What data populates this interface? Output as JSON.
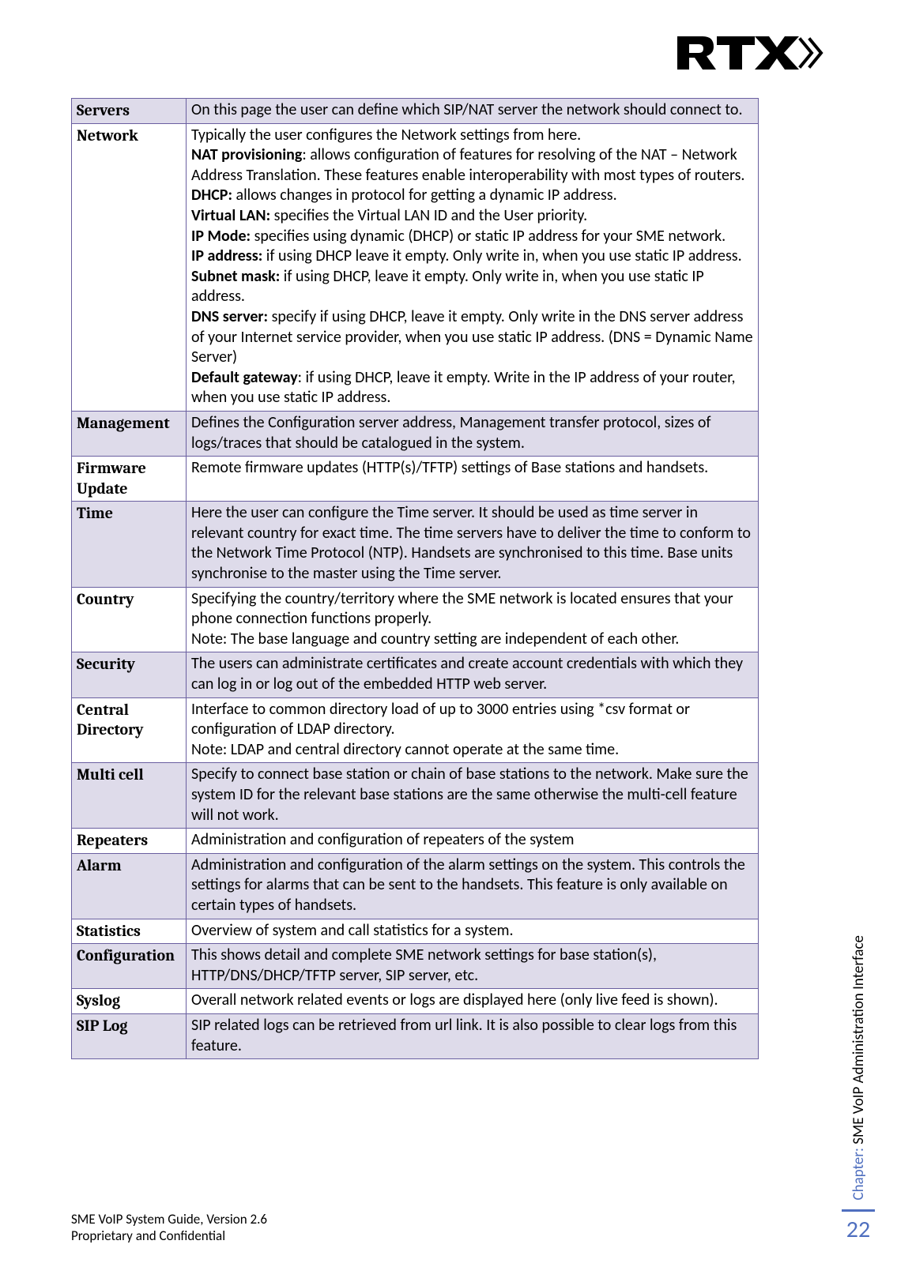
{
  "logo_text": "RTX",
  "rows": [
    {
      "shaded": true,
      "label": "Servers",
      "lines": [
        [
          [
            "",
            "On this page the user can define which SIP/NAT server the network should connect to."
          ]
        ]
      ]
    },
    {
      "shaded": false,
      "label": "Network",
      "lines": [
        [
          [
            "",
            "Typically the user configures the Network settings from here."
          ]
        ],
        [
          [
            "b",
            "NAT provisioning"
          ],
          [
            "",
            ": allows configuration of features for resolving of the NAT – Network Address Translation. These features enable interoperability with most types of routers."
          ]
        ],
        [
          [
            "b",
            "DHCP:"
          ],
          [
            "",
            " allows changes in protocol for getting a dynamic IP address."
          ]
        ],
        [
          [
            "b",
            "Virtual LAN:"
          ],
          [
            "",
            " specifies the Virtual LAN ID and the User priority."
          ]
        ],
        [
          [
            "b",
            "IP Mode:"
          ],
          [
            "",
            " specifies using dynamic (DHCP) or static IP address for your SME network."
          ]
        ],
        [
          [
            "b",
            "IP address:"
          ],
          [
            "",
            " if using DHCP leave it empty. Only write in, when you use static IP address."
          ]
        ],
        [
          [
            "b",
            "Subnet mask:"
          ],
          [
            "",
            " if using DHCP, leave it empty. Only write in, when you use static IP address."
          ]
        ],
        [
          [
            "b",
            "DNS server:"
          ],
          [
            "",
            " specify if using DHCP, leave it empty. Only write in the DNS server address of your Internet service provider, when you use static IP address. (DNS = Dynamic Name Server)"
          ]
        ],
        [
          [
            "b",
            "Default gateway"
          ],
          [
            "",
            ": if using DHCP, leave it empty. Write in the IP address of your router, when you use static IP address."
          ]
        ]
      ]
    },
    {
      "shaded": true,
      "label": "Management",
      "lines": [
        [
          [
            "",
            "Defines the Configuration server address, Management transfer protocol, sizes of logs/traces that should be catalogued in the system."
          ]
        ]
      ]
    },
    {
      "shaded": false,
      "label": "Firmware Update",
      "lines": [
        [
          [
            "",
            "Remote firmware updates (HTTP(s)/TFTP) settings of Base stations and handsets."
          ]
        ]
      ]
    },
    {
      "shaded": true,
      "label": "Time",
      "lines": [
        [
          [
            "",
            "Here the user can configure the Time server. It should be used as time server in relevant country for exact time. The time servers have   to deliver the time to conform to the Network Time Protocol (NTP). Handsets are synchronised to this time. Base units synchronise to the master using the Time server."
          ]
        ]
      ]
    },
    {
      "shaded": false,
      "label": "Country",
      "lines": [
        [
          [
            "",
            "Specifying the country/territory where the SME network is located ensures that your phone connection functions properly."
          ]
        ],
        [
          [
            "",
            "Note: The base language and country setting are independent of each other."
          ]
        ]
      ]
    },
    {
      "shaded": true,
      "label": "Security",
      "lines": [
        [
          [
            "",
            "The users can administrate certificates and create account credentials with which they can log in or log out of the embedded HTTP web server."
          ]
        ]
      ]
    },
    {
      "shaded": false,
      "label": "Central Directory",
      "lines": [
        [
          [
            "",
            "Interface to common directory load of up to 3000 entries using *csv format or configuration of LDAP directory."
          ]
        ],
        [
          [
            "",
            "Note:  LDAP and central directory cannot operate at the same time."
          ]
        ]
      ]
    },
    {
      "shaded": true,
      "label": "Multi cell",
      "lines": [
        [
          [
            "",
            "Specify to connect base station or chain of base stations to the network. Make sure the system ID for the relevant base stations are the same otherwise the multi-cell feature will not work."
          ]
        ]
      ]
    },
    {
      "shaded": false,
      "label": "Repeaters",
      "lines": [
        [
          [
            "",
            "Administration and configuration of repeaters of the system"
          ]
        ]
      ]
    },
    {
      "shaded": true,
      "label": "Alarm",
      "lines": [
        [
          [
            "",
            "Administration and configuration of the alarm settings on the system. This controls the settings for alarms that can be sent to the handsets. This feature is only available on certain types of handsets."
          ]
        ]
      ]
    },
    {
      "shaded": false,
      "label": "Statistics",
      "lines": [
        [
          [
            "",
            "Overview of system and call statistics for a system."
          ]
        ]
      ]
    },
    {
      "shaded": true,
      "label": "Configuration",
      "lines": [
        [
          [
            "",
            "This shows detail and complete SME network settings for base station(s), HTTP/DNS/DHCP/TFTP server, SIP server, etc."
          ]
        ]
      ]
    },
    {
      "shaded": false,
      "label": "Syslog",
      "lines": [
        [
          [
            "",
            "Overall network related events or logs are displayed here (only live feed is shown)."
          ]
        ]
      ]
    },
    {
      "shaded": true,
      "label": "SIP Log",
      "lines": [
        [
          [
            "",
            "SIP related logs can be retrieved from url link. It is also possible to clear logs from this feature."
          ]
        ]
      ]
    }
  ],
  "footer": {
    "line1": "SME VoIP System Guide, Version 2.6",
    "line2": "Proprietary and Confidential"
  },
  "sidebar": {
    "chapter_label": "Chapter:",
    "chapter_title": " SME VoIP Administration Interface",
    "page_number": "22"
  },
  "colors": {
    "border": "#6a5fa0",
    "shaded_bg": "#dedbea",
    "accent": "#4f6fbf"
  }
}
